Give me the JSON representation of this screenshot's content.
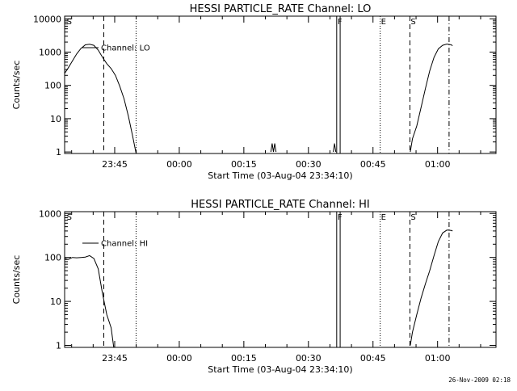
{
  "footer_timestamp": "26-Nov-2009 02:18",
  "chart_data": [
    {
      "type": "line",
      "title": "HESSI PARTICLE_RATE Channel: LO",
      "xlabel": "Start Time (03-Aug-04 23:34:10)",
      "ylabel": "Counts/sec",
      "yscale": "log",
      "ylim": [
        0.9,
        12000
      ],
      "xlim": [
        -0.8,
        99.4
      ],
      "x_units": "minutes after 23:34:10",
      "y_tick_labels": [
        "1",
        "10",
        "100",
        "1000",
        "10000"
      ],
      "y_tick_values": [
        1,
        10,
        100,
        1000,
        10000
      ],
      "x_tick_labels": [
        "23:45",
        "00:00",
        "00:15",
        "00:30",
        "00:45",
        "01:00"
      ],
      "x_tick_values": [
        10.83,
        25.83,
        40.83,
        55.83,
        70.83,
        85.83
      ],
      "legend": {
        "label": "Channel: LO",
        "placement": "top-left"
      },
      "markers": [
        {
          "label": "S",
          "x": -0.5,
          "style": "none"
        },
        {
          "label": "",
          "x": 8.3,
          "style": "dashed"
        },
        {
          "label": "",
          "x": 15.8,
          "style": "dotted"
        },
        {
          "label": "F",
          "x": 62.4,
          "style": "solid"
        },
        {
          "label": "",
          "x": 63.2,
          "style": "solid"
        },
        {
          "label": "E",
          "x": 72.5,
          "style": "dotted"
        },
        {
          "label": "S",
          "x": 79.4,
          "style": "dashed"
        },
        {
          "label": "",
          "x": 88.5,
          "style": "dashdot"
        }
      ],
      "series": [
        {
          "segments": [
            [
              [
                -0.8,
                230
              ],
              [
                0,
                330
              ],
              [
                1,
                540
              ],
              [
                2,
                880
              ],
              [
                3,
                1300
              ],
              [
                3.5,
                1450
              ],
              [
                4,
                1650
              ],
              [
                5,
                1720
              ],
              [
                6,
                1600
              ],
              [
                7,
                1150
              ],
              [
                8,
                700
              ],
              [
                9,
                450
              ],
              [
                10,
                320
              ],
              [
                11,
                200
              ],
              [
                12,
                95
              ],
              [
                13,
                40
              ],
              [
                14,
                12
              ],
              [
                15,
                3
              ],
              [
                15.8,
                0.9
              ]
            ],
            [
              [
                47.1,
                1.0
              ],
              [
                47.4,
                1.8
              ],
              [
                47.7,
                1.0
              ],
              [
                48.0,
                1.8
              ],
              [
                48.3,
                1.0
              ]
            ],
            [
              [
                61.6,
                1.0
              ],
              [
                61.9,
                1.8
              ],
              [
                62.2,
                1.0
              ]
            ],
            [
              [
                79.5,
                1.0
              ],
              [
                80,
                2.5
              ],
              [
                81,
                6
              ],
              [
                82,
                22
              ],
              [
                83,
                80
              ],
              [
                84,
                270
              ],
              [
                85,
                700
              ],
              [
                86,
                1250
              ],
              [
                87,
                1600
              ],
              [
                88,
                1750
              ],
              [
                89,
                1650
              ],
              [
                89.3,
                1550
              ]
            ]
          ]
        }
      ]
    },
    {
      "type": "line",
      "title": "HESSI PARTICLE_RATE Channel: HI",
      "xlabel": "Start Time (03-Aug-04 23:34:10)",
      "ylabel": "Counts/sec",
      "yscale": "log",
      "ylim": [
        0.9,
        1100
      ],
      "xlim": [
        -0.8,
        99.4
      ],
      "x_units": "minutes after 23:34:10",
      "y_tick_labels": [
        "1",
        "10",
        "100",
        "1000"
      ],
      "y_tick_values": [
        1,
        10,
        100,
        1000
      ],
      "x_tick_labels": [
        "23:45",
        "00:00",
        "00:15",
        "00:30",
        "00:45",
        "01:00"
      ],
      "x_tick_values": [
        10.83,
        25.83,
        40.83,
        55.83,
        70.83,
        85.83
      ],
      "legend": {
        "label": "Channel: HI",
        "placement": "top-left"
      },
      "markers": [
        {
          "label": "S",
          "x": -0.5,
          "style": "none"
        },
        {
          "label": "",
          "x": 8.3,
          "style": "dashed"
        },
        {
          "label": "",
          "x": 15.8,
          "style": "dotted"
        },
        {
          "label": "F",
          "x": 62.4,
          "style": "solid"
        },
        {
          "label": "",
          "x": 63.2,
          "style": "solid"
        },
        {
          "label": "E",
          "x": 72.5,
          "style": "dotted"
        },
        {
          "label": "S",
          "x": 79.4,
          "style": "dashed"
        },
        {
          "label": "",
          "x": 88.5,
          "style": "dashdot"
        }
      ],
      "series": [
        {
          "segments": [
            [
              [
                -0.8,
                95
              ],
              [
                0,
                90
              ],
              [
                1,
                100
              ],
              [
                2,
                98
              ],
              [
                3,
                100
              ],
              [
                4,
                102
              ],
              [
                5,
                110
              ],
              [
                6,
                95
              ],
              [
                7,
                55
              ],
              [
                8,
                15
              ],
              [
                9,
                5
              ],
              [
                10,
                2.5
              ],
              [
                10.6,
                0.9
              ]
            ],
            [
              [
                79.5,
                1.0
              ],
              [
                80,
                2
              ],
              [
                81,
                5
              ],
              [
                82,
                12
              ],
              [
                83,
                25
              ],
              [
                84,
                50
              ],
              [
                85,
                110
              ],
              [
                86,
                230
              ],
              [
                87,
                360
              ],
              [
                88,
                420
              ],
              [
                89,
                410
              ],
              [
                89.3,
                400
              ]
            ]
          ]
        }
      ]
    }
  ]
}
